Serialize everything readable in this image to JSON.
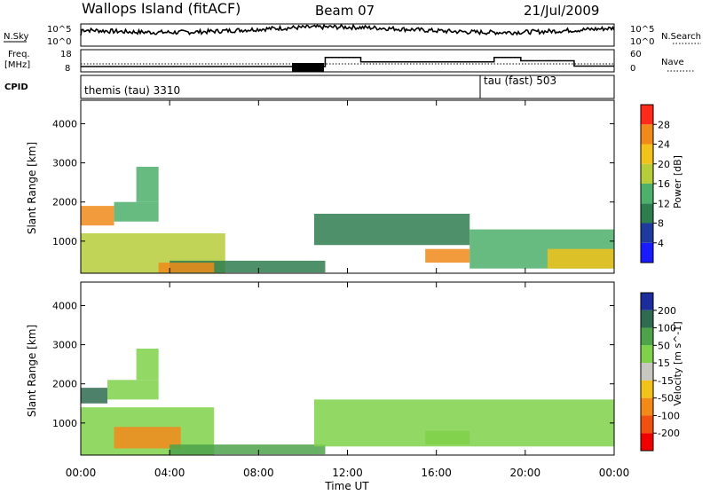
{
  "header": {
    "title": "Wallops Island (fitACF)",
    "beam": "Beam 07",
    "date": "21/Jul/2009"
  },
  "panels": {
    "nsky": {
      "left_label": "N.Sky",
      "right_label": "N.Search",
      "yticks_left": [
        "10^5",
        "10^0"
      ],
      "yticks_right": [
        "10^5",
        "10^0"
      ]
    },
    "freq": {
      "left_label_1": "Freq.",
      "left_label_2": "[MHz]",
      "right_label": "Nave",
      "yticks_left": [
        "18",
        "8"
      ],
      "yticks_right": [
        "60",
        "0"
      ]
    },
    "cpid": {
      "label": "CPID",
      "program_1": "themis (tau) 3310",
      "program_2": "tau (fast) 503"
    }
  },
  "time_axis": {
    "label": "Time UT",
    "ticks": [
      "00:00",
      "04:00",
      "08:00",
      "12:00",
      "16:00",
      "20:00",
      "00:00"
    ]
  },
  "colors": {
    "power_scale": [
      "#1a1aff",
      "#1e3a9e",
      "#2e7d4f",
      "#4caf6a",
      "#b6cc3a",
      "#f2c21a",
      "#f08a1a",
      "#ff2a1a"
    ],
    "velocity_scale": [
      "#1b2c9c",
      "#2e6b50",
      "#4ea24a",
      "#7fd14a",
      "#c7c7c0",
      "#f2c21a",
      "#f28a1a",
      "#f05010",
      "#f00000"
    ]
  },
  "chart_data": [
    {
      "type": "heatmap",
      "title": "",
      "xlabel": "",
      "ylabel": "Slant Range [km]",
      "xlim": [
        0,
        24
      ],
      "ylim": [
        180,
        4600
      ],
      "yticks": [
        "1000",
        "2000",
        "3000",
        "4000"
      ],
      "colorbar": {
        "label": "Power [dB]",
        "ticks": [
          "4",
          "8",
          "12",
          "16",
          "20",
          "24",
          "28"
        ],
        "range": [
          0,
          32
        ]
      },
      "regions": [
        {
          "t": [
            0.0,
            6.5
          ],
          "r": [
            180,
            1200
          ],
          "value": 18
        },
        {
          "t": [
            0.0,
            1.5
          ],
          "r": [
            1400,
            1900
          ],
          "value": 24
        },
        {
          "t": [
            1.5,
            3.5
          ],
          "r": [
            1500,
            2000
          ],
          "value": 14
        },
        {
          "t": [
            2.5,
            3.5
          ],
          "r": [
            2000,
            2900
          ],
          "value": 12
        },
        {
          "t": [
            4.0,
            11.0
          ],
          "r": [
            200,
            500
          ],
          "value": 8
        },
        {
          "t": [
            3.5,
            6.0
          ],
          "r": [
            200,
            450
          ],
          "value": 26
        },
        {
          "t": [
            10.5,
            17.5
          ],
          "r": [
            900,
            1700
          ],
          "value": 10
        },
        {
          "t": [
            15.5,
            17.5
          ],
          "r": [
            450,
            800
          ],
          "value": 26
        },
        {
          "t": [
            17.5,
            24.0
          ],
          "r": [
            300,
            1300
          ],
          "value": 12
        },
        {
          "t": [
            21.0,
            24.0
          ],
          "r": [
            300,
            800
          ],
          "value": 22
        }
      ]
    },
    {
      "type": "heatmap",
      "title": "",
      "xlabel": "Time UT",
      "ylabel": "Slant Range [km]",
      "xlim": [
        0,
        24
      ],
      "ylim": [
        180,
        4600
      ],
      "yticks": [
        "1000",
        "2000",
        "3000",
        "4000"
      ],
      "colorbar": {
        "label": "Velocity [m s^-1]",
        "ticks": [
          "200",
          "100",
          "50",
          "15",
          "-15",
          "-50",
          "-100",
          "-200"
        ],
        "range": [
          -250,
          250
        ]
      },
      "regions": [
        {
          "t": [
            0.0,
            6.0
          ],
          "r": [
            180,
            1400
          ],
          "value": 0
        },
        {
          "t": [
            0.0,
            1.2
          ],
          "r": [
            1500,
            1900
          ],
          "value": 120
        },
        {
          "t": [
            1.2,
            3.5
          ],
          "r": [
            1600,
            2100
          ],
          "value": 0
        },
        {
          "t": [
            2.5,
            3.5
          ],
          "r": [
            2100,
            2900
          ],
          "value": 0
        },
        {
          "t": [
            1.5,
            4.5
          ],
          "r": [
            350,
            900
          ],
          "value": -80
        },
        {
          "t": [
            4.0,
            11.0
          ],
          "r": [
            200,
            450
          ],
          "value": 40
        },
        {
          "t": [
            10.5,
            24.0
          ],
          "r": [
            400,
            1600
          ],
          "value": 0
        },
        {
          "t": [
            15.5,
            17.5
          ],
          "r": [
            450,
            800
          ],
          "value": 0
        }
      ]
    },
    {
      "type": "line",
      "title": "",
      "ylabel": "Freq. [MHz]",
      "ylim": [
        8,
        18
      ],
      "series": [
        {
          "x": [
            0.0,
            9.5,
            10.0,
            10.6,
            11.0,
            12.2,
            12.6,
            18.0,
            18.6,
            19.4,
            19.8,
            21.8,
            22.2,
            24.0
          ],
          "y": [
            10.4,
            10.4,
            9.5,
            10.4,
            14.5,
            14.5,
            12.5,
            12.5,
            14.5,
            14.5,
            13.0,
            13.0,
            10.6,
            10.6
          ]
        }
      ]
    }
  ]
}
